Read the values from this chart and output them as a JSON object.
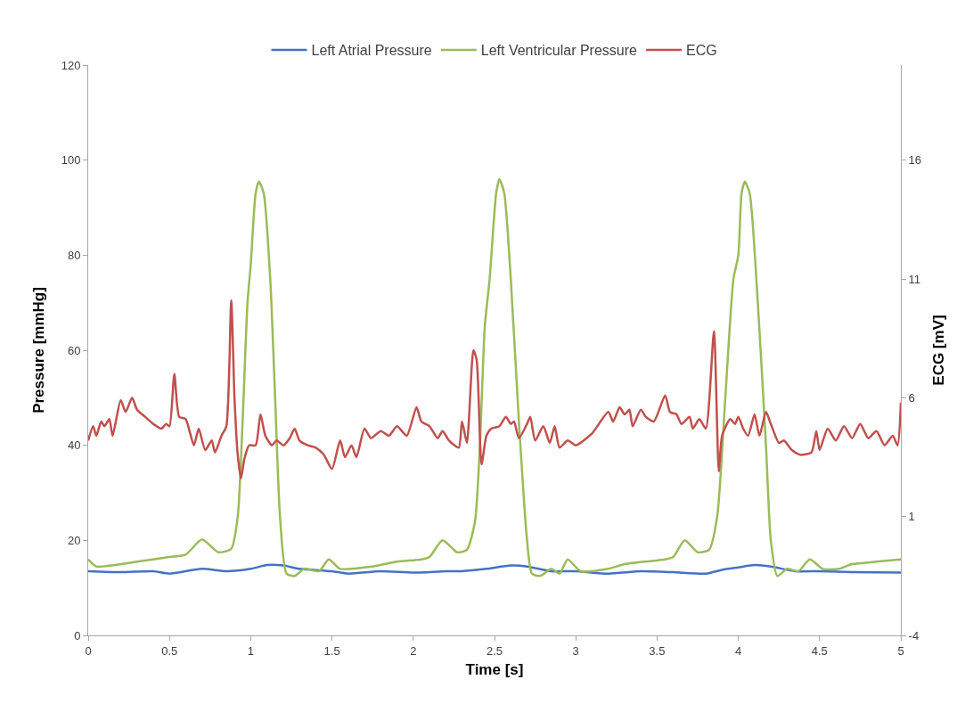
{
  "chart_data": {
    "type": "line",
    "xlabel": "Time [s]",
    "ylabel": "Pressure [mmHg]",
    "y2label": "ECG [mV]",
    "xlim": [
      0,
      5
    ],
    "xticks": [
      0,
      0.5,
      1,
      1.5,
      2,
      2.5,
      3,
      3.5,
      4,
      4.5,
      5
    ],
    "ylim": [
      0,
      120
    ],
    "yticks": [
      0,
      20,
      40,
      60,
      80,
      100,
      120
    ],
    "y2lim": [
      -4,
      20
    ],
    "y2ticks": [
      -4,
      1,
      6,
      11,
      16
    ],
    "legend": "top",
    "marker": "none",
    "line_style": "solid",
    "series": [
      {
        "name": "Left Atrial Pressure",
        "color": "#4472c4",
        "x": [
          0,
          0.2,
          0.4,
          0.5,
          0.7,
          0.85,
          1.0,
          1.1,
          1.2,
          1.3,
          1.5,
          1.6,
          1.8,
          2.0,
          2.2,
          2.3,
          2.45,
          2.6,
          2.7,
          2.85,
          3.0,
          3.2,
          3.4,
          3.6,
          3.8,
          3.9,
          4.0,
          4.1,
          4.2,
          4.35,
          4.5,
          4.7,
          5.0
        ],
        "values": [
          13.5,
          13.3,
          13.5,
          13,
          14,
          13.5,
          14,
          14.8,
          14.7,
          14,
          13.5,
          13,
          13.5,
          13.2,
          13.5,
          13.5,
          14,
          14.7,
          14.5,
          13.5,
          13.5,
          13,
          13.5,
          13.3,
          13,
          13.8,
          14.3,
          14.8,
          14.5,
          13.5,
          13.5,
          13.3,
          13.2
        ]
      },
      {
        "name": "Left Ventricular Pressure",
        "color": "#9bbb59",
        "x": [
          0,
          0.05,
          0.3,
          0.5,
          0.6,
          0.7,
          0.8,
          0.88,
          0.92,
          0.95,
          0.98,
          1.0,
          1.03,
          1.05,
          1.08,
          1.12,
          1.15,
          1.18,
          1.22,
          1.27,
          1.33,
          1.42,
          1.48,
          1.55,
          1.75,
          1.9,
          2.05,
          2.1,
          2.18,
          2.27,
          2.33,
          2.38,
          2.41,
          2.44,
          2.47,
          2.51,
          2.53,
          2.56,
          2.6,
          2.65,
          2.7,
          2.73,
          2.78,
          2.85,
          2.9,
          2.95,
          3.03,
          3.2,
          3.3,
          3.55,
          3.6,
          3.67,
          3.75,
          3.82,
          3.87,
          3.92,
          3.97,
          4.0,
          4.02,
          4.04,
          4.07,
          4.12,
          4.17,
          4.2,
          4.24,
          4.3,
          4.37,
          4.44,
          4.52,
          4.62,
          4.7,
          4.85,
          5.0
        ],
        "values": [
          16,
          14.5,
          15.5,
          16.5,
          17,
          20.2,
          17.5,
          18.2,
          25,
          45,
          70,
          78,
          93,
          95.5,
          93,
          75,
          50,
          25,
          13,
          12.5,
          14,
          13.5,
          16,
          14,
          14.5,
          15.5,
          16,
          16.5,
          20,
          17.5,
          18,
          24,
          40,
          65,
          75,
          93,
          96,
          93,
          75,
          45,
          20,
          13,
          12.5,
          14,
          13,
          16,
          13.5,
          14,
          15,
          16,
          16.5,
          20,
          17.5,
          18,
          25,
          50,
          75,
          80,
          93,
          95.5,
          93,
          70,
          40,
          20,
          12.5,
          14,
          13.5,
          16,
          14,
          14,
          15,
          15.5,
          16
        ]
      },
      {
        "name": "ECG",
        "color": "#c0504d",
        "axis": "y2",
        "x": [
          0,
          0.03,
          0.05,
          0.08,
          0.1,
          0.13,
          0.15,
          0.2,
          0.23,
          0.27,
          0.3,
          0.35,
          0.4,
          0.45,
          0.48,
          0.5,
          0.53,
          0.56,
          0.6,
          0.65,
          0.68,
          0.72,
          0.76,
          0.78,
          0.82,
          0.85,
          0.88,
          0.9,
          0.92,
          0.94,
          0.96,
          0.99,
          1.03,
          1.06,
          1.09,
          1.13,
          1.16,
          1.2,
          1.24,
          1.27,
          1.3,
          1.35,
          1.4,
          1.45,
          1.5,
          1.55,
          1.58,
          1.62,
          1.65,
          1.7,
          1.74,
          1.8,
          1.85,
          1.9,
          1.96,
          2.02,
          2.05,
          2.1,
          2.15,
          2.18,
          2.22,
          2.28,
          2.3,
          2.33,
          2.37,
          2.39,
          2.42,
          2.45,
          2.48,
          2.53,
          2.57,
          2.6,
          2.62,
          2.65,
          2.7,
          2.72,
          2.75,
          2.8,
          2.84,
          2.87,
          2.9,
          2.95,
          3.0,
          3.1,
          3.2,
          3.23,
          3.27,
          3.3,
          3.33,
          3.35,
          3.4,
          3.43,
          3.48,
          3.55,
          3.58,
          3.62,
          3.65,
          3.7,
          3.72,
          3.76,
          3.8,
          3.85,
          3.88,
          3.9,
          3.95,
          3.98,
          4.0,
          4.03,
          4.06,
          4.1,
          4.13,
          4.17,
          4.2,
          4.25,
          4.28,
          4.33,
          4.38,
          4.45,
          4.48,
          4.5,
          4.55,
          4.6,
          4.65,
          4.7,
          4.75,
          4.8,
          4.85,
          4.9,
          4.95,
          4.98,
          5.0
        ],
        "values": [
          4.2,
          4.8,
          4.4,
          5,
          4.8,
          5.1,
          4.4,
          5.9,
          5.4,
          6,
          5.5,
          5.2,
          4.9,
          4.7,
          4.9,
          4.8,
          7.0,
          5.2,
          5.1,
          4,
          4.7,
          3.8,
          4.2,
          3.7,
          4.4,
          4.8,
          10.1,
          6,
          3.6,
          2.6,
          3.4,
          4,
          4,
          5.3,
          4.4,
          4,
          4.2,
          4,
          4.3,
          4.7,
          4.2,
          4,
          3.9,
          3.6,
          3,
          4.2,
          3.5,
          4,
          3.5,
          4.7,
          4.3,
          4.6,
          4.4,
          4.8,
          4.4,
          5.6,
          5,
          4.8,
          4.3,
          4.6,
          4.2,
          3.9,
          5,
          4.1,
          8,
          7.6,
          3.2,
          4.4,
          4.7,
          4.8,
          5.2,
          4.9,
          5,
          4.3,
          4.9,
          5.2,
          4.2,
          4.8,
          4.1,
          4.8,
          3.9,
          4.2,
          4,
          4.5,
          5.4,
          5,
          5.6,
          5.3,
          5.5,
          4.8,
          5.5,
          5.2,
          5,
          6.1,
          5.4,
          5.3,
          4.9,
          5.2,
          4.7,
          5.1,
          4.7,
          8.8,
          2.9,
          4.4,
          5.1,
          4.9,
          5.2,
          4.7,
          4.4,
          5.3,
          4.4,
          5.4,
          4.9,
          4.1,
          4.2,
          3.8,
          3.6,
          3.7,
          4.6,
          3.8,
          4.7,
          4.2,
          4.8,
          4.3,
          4.9,
          4.3,
          4.6,
          4,
          4.4,
          4,
          5.8
        ]
      }
    ]
  }
}
